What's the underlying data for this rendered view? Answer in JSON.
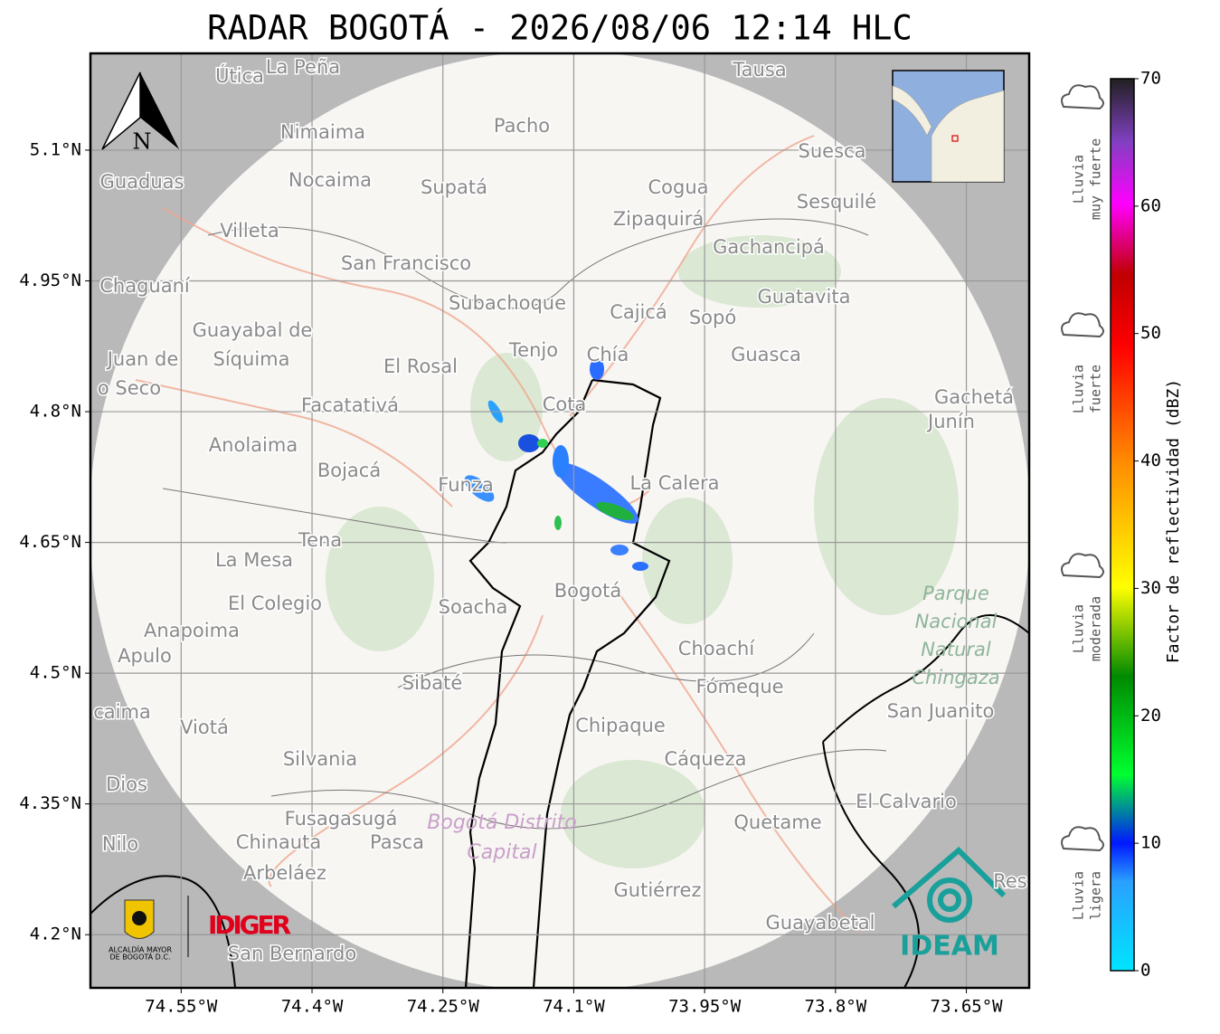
{
  "title": "RADAR BOGOTÁ - 2026/08/06 12:14 HLC",
  "map": {
    "lon_range": [
      -74.654,
      -73.578
    ],
    "lat_range": [
      4.139,
      5.211
    ],
    "lon_ticks": [
      {
        "value": -74.55,
        "label": "74.55°W"
      },
      {
        "value": -74.4,
        "label": "74.4°W"
      },
      {
        "value": -74.25,
        "label": "74.25°W"
      },
      {
        "value": -74.1,
        "label": "74.1°W"
      },
      {
        "value": -73.95,
        "label": "73.95°W"
      },
      {
        "value": -73.8,
        "label": "73.8°W"
      },
      {
        "value": -73.65,
        "label": "73.65°W"
      }
    ],
    "lat_ticks": [
      {
        "value": 5.1,
        "label": "5.1°N"
      },
      {
        "value": 4.95,
        "label": "4.95°N"
      },
      {
        "value": 4.8,
        "label": "4.8°N"
      },
      {
        "value": 4.65,
        "label": "4.65°N"
      },
      {
        "value": 4.5,
        "label": "4.5°N"
      },
      {
        "value": 4.35,
        "label": "4.35°N"
      },
      {
        "value": 4.2,
        "label": "4.2°N"
      }
    ],
    "north": "N",
    "places": [
      "Útica",
      "La Peña",
      "Tausa",
      "Pacho",
      "Nimaima",
      "Guaduas",
      "Nocaima",
      "Supatá",
      "Cogua",
      "Suesca",
      "Sesquilé",
      "Zipaquirá",
      "Villeta",
      "Gachancipá",
      "San Francisco",
      "Chaguaní",
      "Guatavita",
      "Subachoque",
      "Cajicá",
      "Sopó",
      "Guayabal de",
      "Síquima",
      "Juan de",
      "o Seco",
      "Tenjo",
      "Chía",
      "Guasca",
      "El Rosal",
      "Facatativá",
      "Gachetá",
      "Junín",
      "Anolaima",
      "Cota",
      "Bojacá",
      "Funza",
      "La Calera",
      "Tena",
      "La Mesa",
      "El Colegio",
      "Soacha",
      "Bogotá",
      "Anapoima",
      "Apulo",
      "Choachí",
      "Sibaté",
      "Fómeque",
      "San Juanito",
      "caima",
      "Viotá",
      "Chipaque",
      "Silvania",
      "Cáqueza",
      "Dios",
      "El Calvario",
      "Fusagasugá",
      "Quetame",
      "Nilo",
      "Chinauta",
      "Pasca",
      "Arbeláez",
      "Gutiérrez",
      "Guayabetal",
      "San Bernardo",
      "Res"
    ],
    "park": [
      "Parque",
      "Nacional",
      "Natural",
      "Chingaza"
    ],
    "district": [
      "Bogotá Distrito",
      "Capital"
    ],
    "logos": {
      "alcaldia": [
        "ALCALDÍA MAYOR",
        "DE BOGOTÁ D.C."
      ],
      "idiger": "IDIGER",
      "ideam": "IDEAM"
    }
  },
  "colorbar": {
    "label": "Factor de reflectividad (dBZ)",
    "range": [
      0,
      70
    ],
    "ticks": [
      0,
      10,
      20,
      30,
      40,
      50,
      60,
      70
    ]
  },
  "rain_levels": [
    {
      "lines": [
        "Lluvia",
        "muy fuerte"
      ]
    },
    {
      "lines": [
        "Lluvia",
        "fuerte"
      ]
    },
    {
      "lines": [
        "Lluvia",
        "moderada"
      ]
    },
    {
      "lines": [
        "Lluvia",
        "ligera"
      ]
    }
  ]
}
